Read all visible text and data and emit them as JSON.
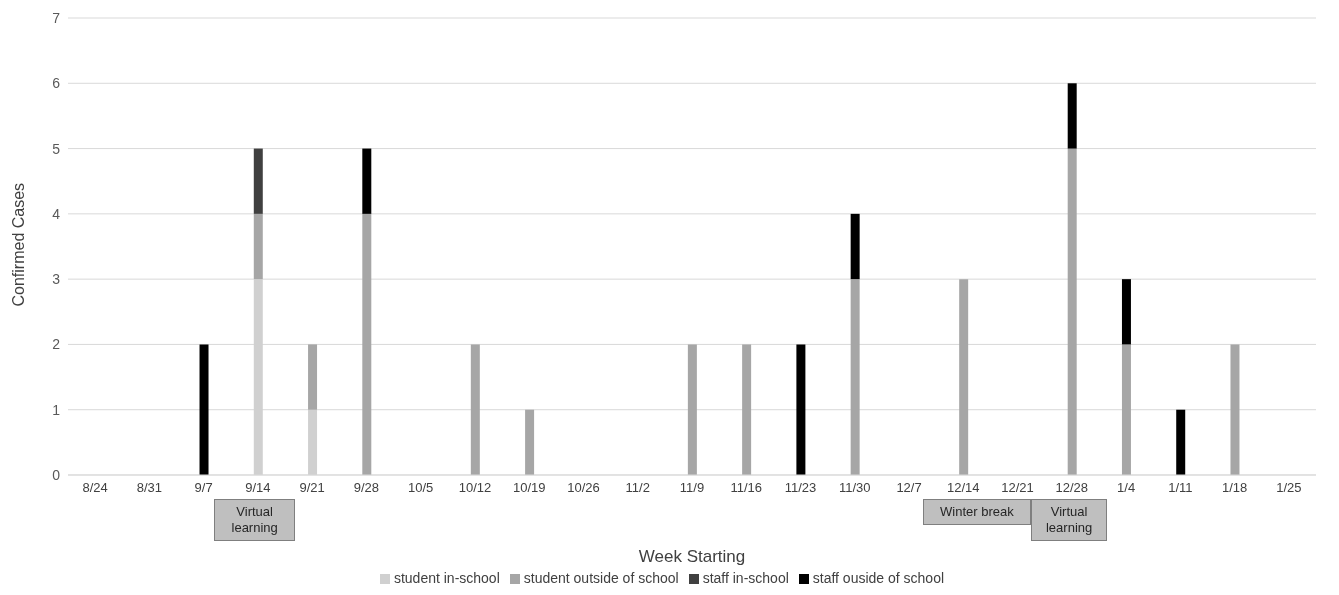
{
  "chart_data": {
    "type": "bar",
    "stacked": true,
    "xlabel": "Week Starting",
    "ylabel": "Confirmed Cases",
    "categories": [
      "8/24",
      "8/31",
      "9/7",
      "9/14",
      "9/21",
      "9/28",
      "10/5",
      "10/12",
      "10/19",
      "10/26",
      "11/2",
      "11/9",
      "11/16",
      "11/23",
      "11/30",
      "12/7",
      "12/14",
      "12/21",
      "12/28",
      "1/4",
      "1/11",
      "1/18",
      "1/25"
    ],
    "series": [
      {
        "name": "student in-school",
        "color": "#d0d0d0",
        "values": [
          null,
          null,
          null,
          3,
          1,
          null,
          null,
          null,
          null,
          null,
          null,
          null,
          null,
          null,
          null,
          null,
          null,
          null,
          null,
          null,
          null,
          null,
          null
        ]
      },
      {
        "name": "student outside of school",
        "color": "#a6a6a6",
        "values": [
          null,
          null,
          null,
          1,
          1,
          4,
          null,
          2,
          1,
          null,
          null,
          2,
          2,
          null,
          3,
          null,
          3,
          null,
          5,
          2,
          null,
          2,
          null
        ]
      },
      {
        "name": "staff in-school",
        "color": "#404040",
        "values": [
          null,
          null,
          null,
          1,
          null,
          null,
          null,
          null,
          null,
          null,
          null,
          null,
          null,
          null,
          null,
          null,
          null,
          null,
          null,
          null,
          null,
          null,
          null
        ]
      },
      {
        "name": "staff ouside of school",
        "color": "#000000",
        "values": [
          null,
          null,
          2,
          null,
          null,
          1,
          null,
          null,
          null,
          null,
          null,
          null,
          null,
          2,
          1,
          null,
          null,
          null,
          1,
          1,
          1,
          null,
          null
        ]
      }
    ],
    "ylim": [
      0,
      7
    ],
    "yticks": [
      0,
      1,
      2,
      3,
      4,
      5,
      6,
      7
    ],
    "grid": "y",
    "legend": "bottom",
    "annotations": [
      "Virtual learning",
      "Winter break",
      "Virtual learning"
    ]
  }
}
